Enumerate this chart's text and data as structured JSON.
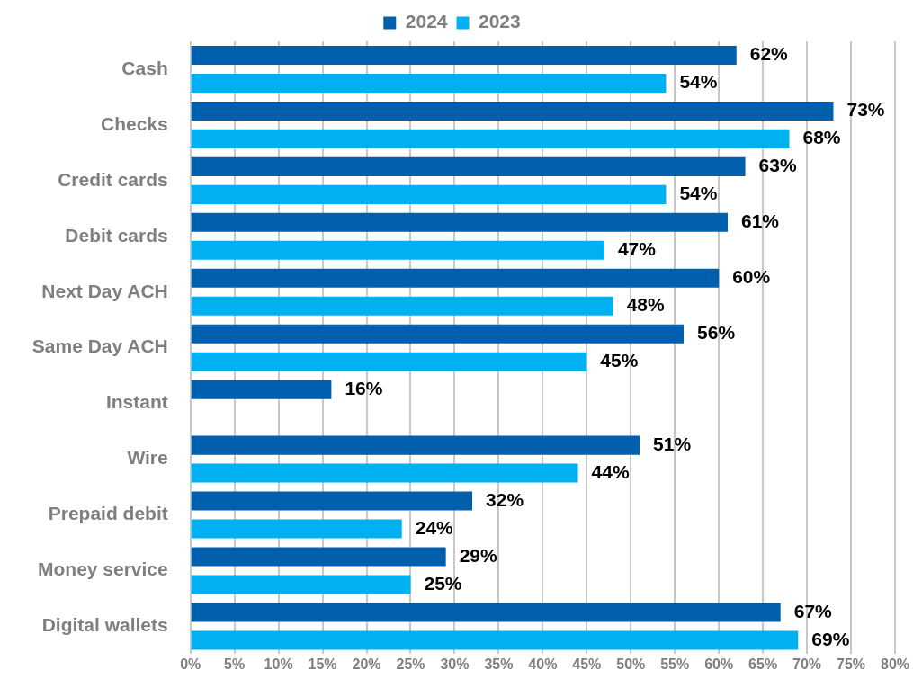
{
  "chart_data": {
    "type": "bar",
    "orientation": "horizontal",
    "categories": [
      "Cash",
      "Checks",
      "Credit cards",
      "Debit cards",
      "Next Day ACH",
      "Same Day ACH",
      "Instant",
      "Wire",
      "Prepaid debit",
      "Money service",
      "Digital wallets"
    ],
    "series": [
      {
        "name": "2024",
        "color": "#0060ae",
        "values": [
          62,
          73,
          63,
          61,
          60,
          56,
          16,
          51,
          32,
          29,
          67
        ],
        "value_labels": [
          "62%",
          "73%",
          "63%",
          "61%",
          "60%",
          "56%",
          "16%",
          "51%",
          "32%",
          "29%",
          "67%"
        ]
      },
      {
        "name": "2023",
        "color": "#00b0f0",
        "values": [
          54,
          68,
          54,
          47,
          48,
          45,
          null,
          44,
          24,
          25,
          69
        ],
        "value_labels": [
          "54%",
          "68%",
          "54%",
          "47%",
          "48%",
          "45%",
          null,
          "44%",
          "24%",
          "25%",
          "69%"
        ]
      }
    ],
    "xlim": [
      0,
      80
    ],
    "xticks": [
      {
        "value": 0,
        "label": "0%"
      },
      {
        "value": 5,
        "label": "5%"
      },
      {
        "value": 10,
        "label": "10%"
      },
      {
        "value": 15,
        "label": "15%"
      },
      {
        "value": 20,
        "label": "20%"
      },
      {
        "value": 25,
        "label": "25%"
      },
      {
        "value": 30,
        "label": "30%"
      },
      {
        "value": 35,
        "label": "35%"
      },
      {
        "value": 40,
        "label": "40%"
      },
      {
        "value": 45,
        "label": "45%"
      },
      {
        "value": 50,
        "label": "50%"
      },
      {
        "value": 55,
        "label": "55%"
      },
      {
        "value": 60,
        "label": "60%"
      },
      {
        "value": 65,
        "label": "65%"
      },
      {
        "value": 70,
        "label": "70%"
      },
      {
        "value": 75,
        "label": "75%"
      },
      {
        "value": 80,
        "label": "80%"
      }
    ],
    "grid": "x",
    "legend": "top"
  }
}
